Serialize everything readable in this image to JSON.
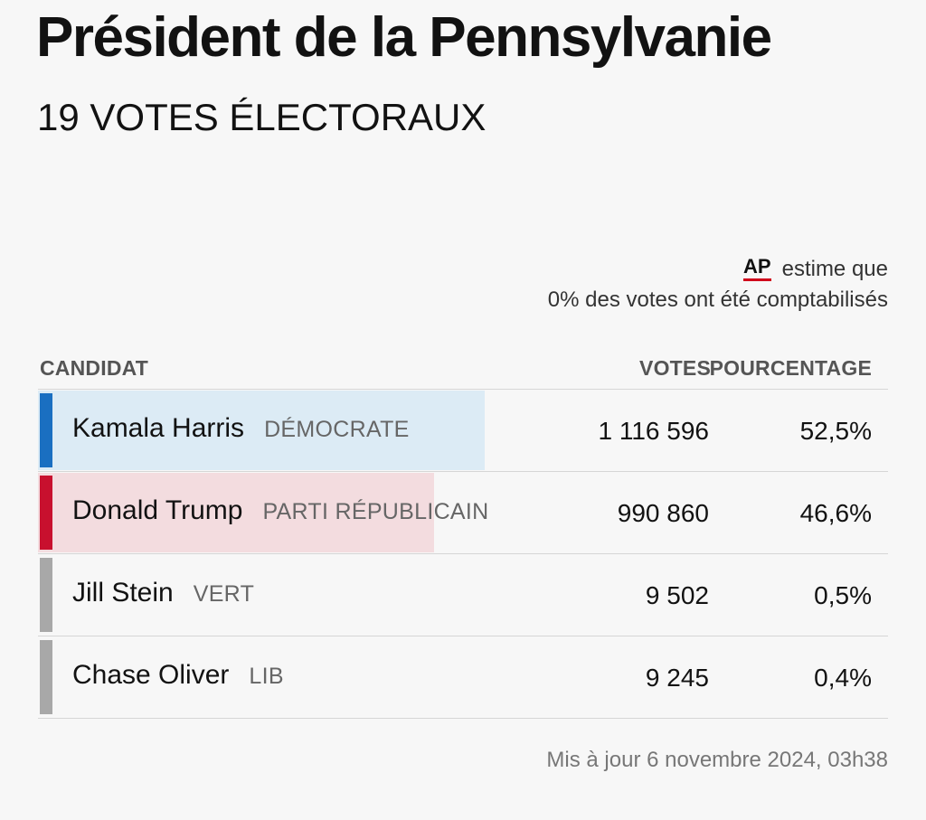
{
  "header": {
    "title": "Président de la Pennsylvanie",
    "subtitle": "19 VOTES ÉLECTORAUX"
  },
  "estimate": {
    "logo": "AP",
    "line1": "estime que",
    "line2": "0% des votes ont été comptabilisés"
  },
  "table": {
    "headers": {
      "candidate": "CANDIDAT",
      "votes": "VOTES",
      "percent": "POURCENTAGE"
    },
    "rows": [
      {
        "name": "Kamala Harris",
        "party": "DÉMOCRATE",
        "votes": "1 116 596",
        "percent": "52,5%",
        "share": 0.525,
        "color": "#1a6fc1",
        "bar_color": "#dcebf5"
      },
      {
        "name": "Donald Trump",
        "party": "PARTI RÉPUBLICAIN",
        "votes": "990 860",
        "percent": "46,6%",
        "share": 0.466,
        "color": "#c8102e",
        "bar_color": "#f3dcdf"
      },
      {
        "name": "Jill Stein",
        "party": "VERT",
        "votes": "9 502",
        "percent": "0,5%",
        "share": 0.005,
        "color": "#a8a8a8",
        "bar_color": ""
      },
      {
        "name": "Chase Oliver",
        "party": "LIB",
        "votes": "9 245",
        "percent": "0,4%",
        "share": 0.004,
        "color": "#a8a8a8",
        "bar_color": ""
      }
    ]
  },
  "footer": {
    "updated": "Mis à jour  6 novembre 2024, 03h38"
  }
}
